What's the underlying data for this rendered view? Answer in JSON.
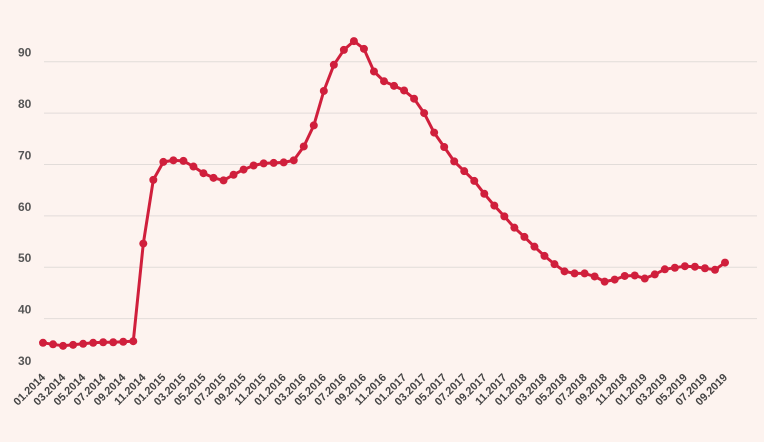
{
  "chart_data": {
    "type": "line",
    "title": "",
    "xlabel": "",
    "ylabel": "",
    "ylim": [
      30,
      95
    ],
    "y_ticks": [
      30,
      40,
      50,
      60,
      70,
      80,
      90
    ],
    "grid": true,
    "legend": "none",
    "colors": {
      "series": "#d01f3c",
      "grid": "#e2dcd9",
      "background": "#fdf3ef"
    },
    "x": [
      "01.2014",
      "02.2014",
      "03.2014",
      "04.2014",
      "05.2014",
      "06.2014",
      "07.2014",
      "08.2014",
      "09.2014",
      "10.2014",
      "11.2014",
      "12.2014",
      "01.2015",
      "02.2015",
      "03.2015",
      "04.2015",
      "05.2015",
      "06.2015",
      "07.2015",
      "08.2015",
      "09.2015",
      "10.2015",
      "11.2015",
      "12.2015",
      "01.2016",
      "02.2016",
      "03.2016",
      "04.2016",
      "05.2016",
      "06.2016",
      "07.2016",
      "08.2016",
      "09.2016",
      "10.2016",
      "11.2016",
      "12.2016",
      "01.2017",
      "02.2017",
      "03.2017",
      "04.2017",
      "05.2017",
      "06.2017",
      "07.2017",
      "08.2017",
      "09.2017",
      "10.2017",
      "11.2017",
      "12.2017",
      "01.2018",
      "02.2018",
      "03.2018",
      "04.2018",
      "05.2018",
      "06.2018",
      "07.2018",
      "08.2018",
      "09.2018",
      "10.2018",
      "11.2018",
      "12.2018",
      "01.2019",
      "02.2019",
      "03.2019",
      "04.2019",
      "05.2019",
      "06.2019",
      "07.2019",
      "08.2019",
      "09.2019"
    ],
    "x_tick_labels": [
      "01.2014",
      "03.2014",
      "05.2014",
      "07.2014",
      "09.2014",
      "11.2014",
      "01.2015",
      "03.2015",
      "05.2015",
      "07.2015",
      "09.2015",
      "11.2015",
      "01.2016",
      "03.2016",
      "05.2016",
      "07.2016",
      "09.2016",
      "11.2016",
      "01.2017",
      "03.2017",
      "05.2017",
      "07.2017",
      "09.2017",
      "11.2017",
      "01.2018",
      "03.2018",
      "05.2018",
      "07.2018",
      "09.2018",
      "11.2018",
      "01.2019",
      "03.2019",
      "05.2019",
      "07.2019",
      "09.2019"
    ],
    "series": [
      {
        "values": [
          35.3,
          35.0,
          34.7,
          34.9,
          35.1,
          35.3,
          35.4,
          35.4,
          35.5,
          35.6,
          54.6,
          67.0,
          70.5,
          70.8,
          70.7,
          69.6,
          68.3,
          67.4,
          66.9,
          68.0,
          69.0,
          69.8,
          70.2,
          70.3,
          70.4,
          70.8,
          73.5,
          77.6,
          84.3,
          89.4,
          92.3,
          94.0,
          92.5,
          88.1,
          86.2,
          85.3,
          84.4,
          82.8,
          80.0,
          76.2,
          73.4,
          70.6,
          68.7,
          66.8,
          64.3,
          62.0,
          59.9,
          57.7,
          55.9,
          54.0,
          52.2,
          50.6,
          49.2,
          48.8,
          48.8,
          48.2,
          47.2,
          47.6,
          48.3,
          48.4,
          47.8,
          48.6,
          49.6,
          49.9,
          50.2,
          50.1,
          49.8,
          49.5,
          50.9
        ]
      }
    ]
  }
}
